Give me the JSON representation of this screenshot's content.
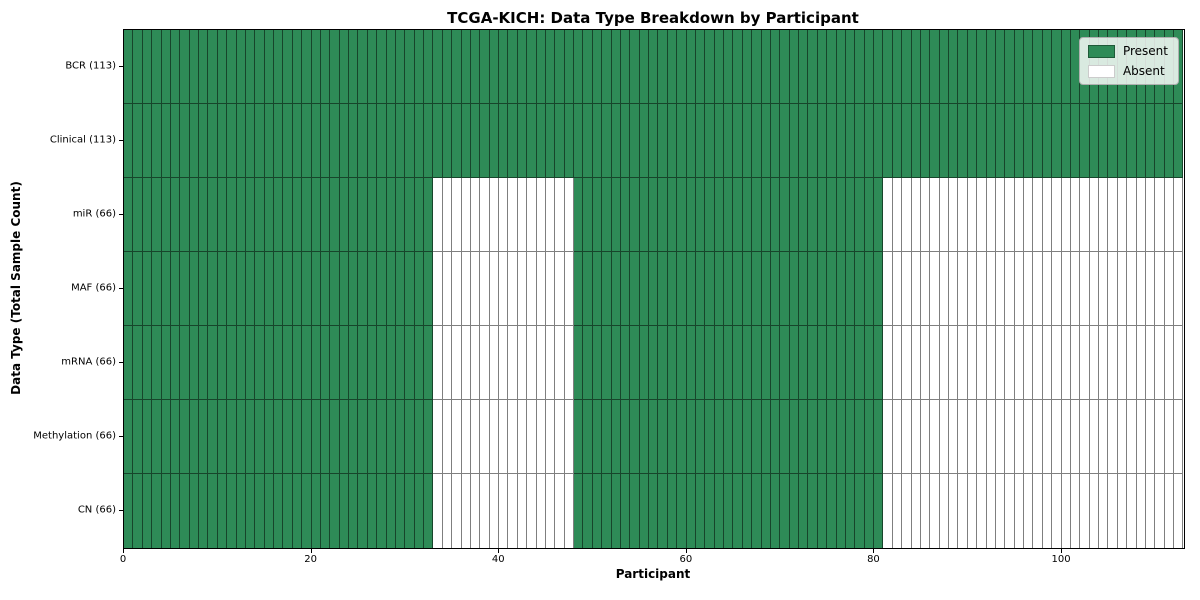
{
  "colors": {
    "present": "#2e8b57",
    "absent": "#ffffff",
    "cell_edge": "rgba(0,0,0,0.5)"
  },
  "chart_data": {
    "type": "heatmap",
    "title": "TCGA-KICH: Data Type Breakdown by Participant",
    "xlabel": "Participant",
    "ylabel": "Data Type (Total Sample Count)",
    "n_participants": 113,
    "xlim": [
      0,
      113
    ],
    "xticks": [
      0,
      20,
      40,
      60,
      80,
      100
    ],
    "grid": "per-cell borders",
    "legend_position": "upper right",
    "legend": [
      {
        "label": "Present",
        "color": "#2e8b57"
      },
      {
        "label": "Absent",
        "color": "#ffffff"
      }
    ],
    "rows": [
      {
        "label": "BCR (113)",
        "data_type": "BCR",
        "total_samples": 113,
        "present_ranges": [
          [
            0,
            113
          ]
        ]
      },
      {
        "label": "Clinical (113)",
        "data_type": "Clinical",
        "total_samples": 113,
        "present_ranges": [
          [
            0,
            113
          ]
        ]
      },
      {
        "label": "miR (66)",
        "data_type": "miR",
        "total_samples": 66,
        "present_ranges": [
          [
            0,
            33
          ],
          [
            48,
            81
          ]
        ]
      },
      {
        "label": "MAF (66)",
        "data_type": "MAF",
        "total_samples": 66,
        "present_ranges": [
          [
            0,
            33
          ],
          [
            48,
            81
          ]
        ]
      },
      {
        "label": "mRNA (66)",
        "data_type": "mRNA",
        "total_samples": 66,
        "present_ranges": [
          [
            0,
            33
          ],
          [
            48,
            81
          ]
        ]
      },
      {
        "label": "Methylation (66)",
        "data_type": "Methylation",
        "total_samples": 66,
        "present_ranges": [
          [
            0,
            33
          ],
          [
            48,
            81
          ]
        ]
      },
      {
        "label": "CN (66)",
        "data_type": "CN",
        "total_samples": 66,
        "present_ranges": [
          [
            0,
            33
          ],
          [
            48,
            81
          ]
        ]
      }
    ]
  }
}
